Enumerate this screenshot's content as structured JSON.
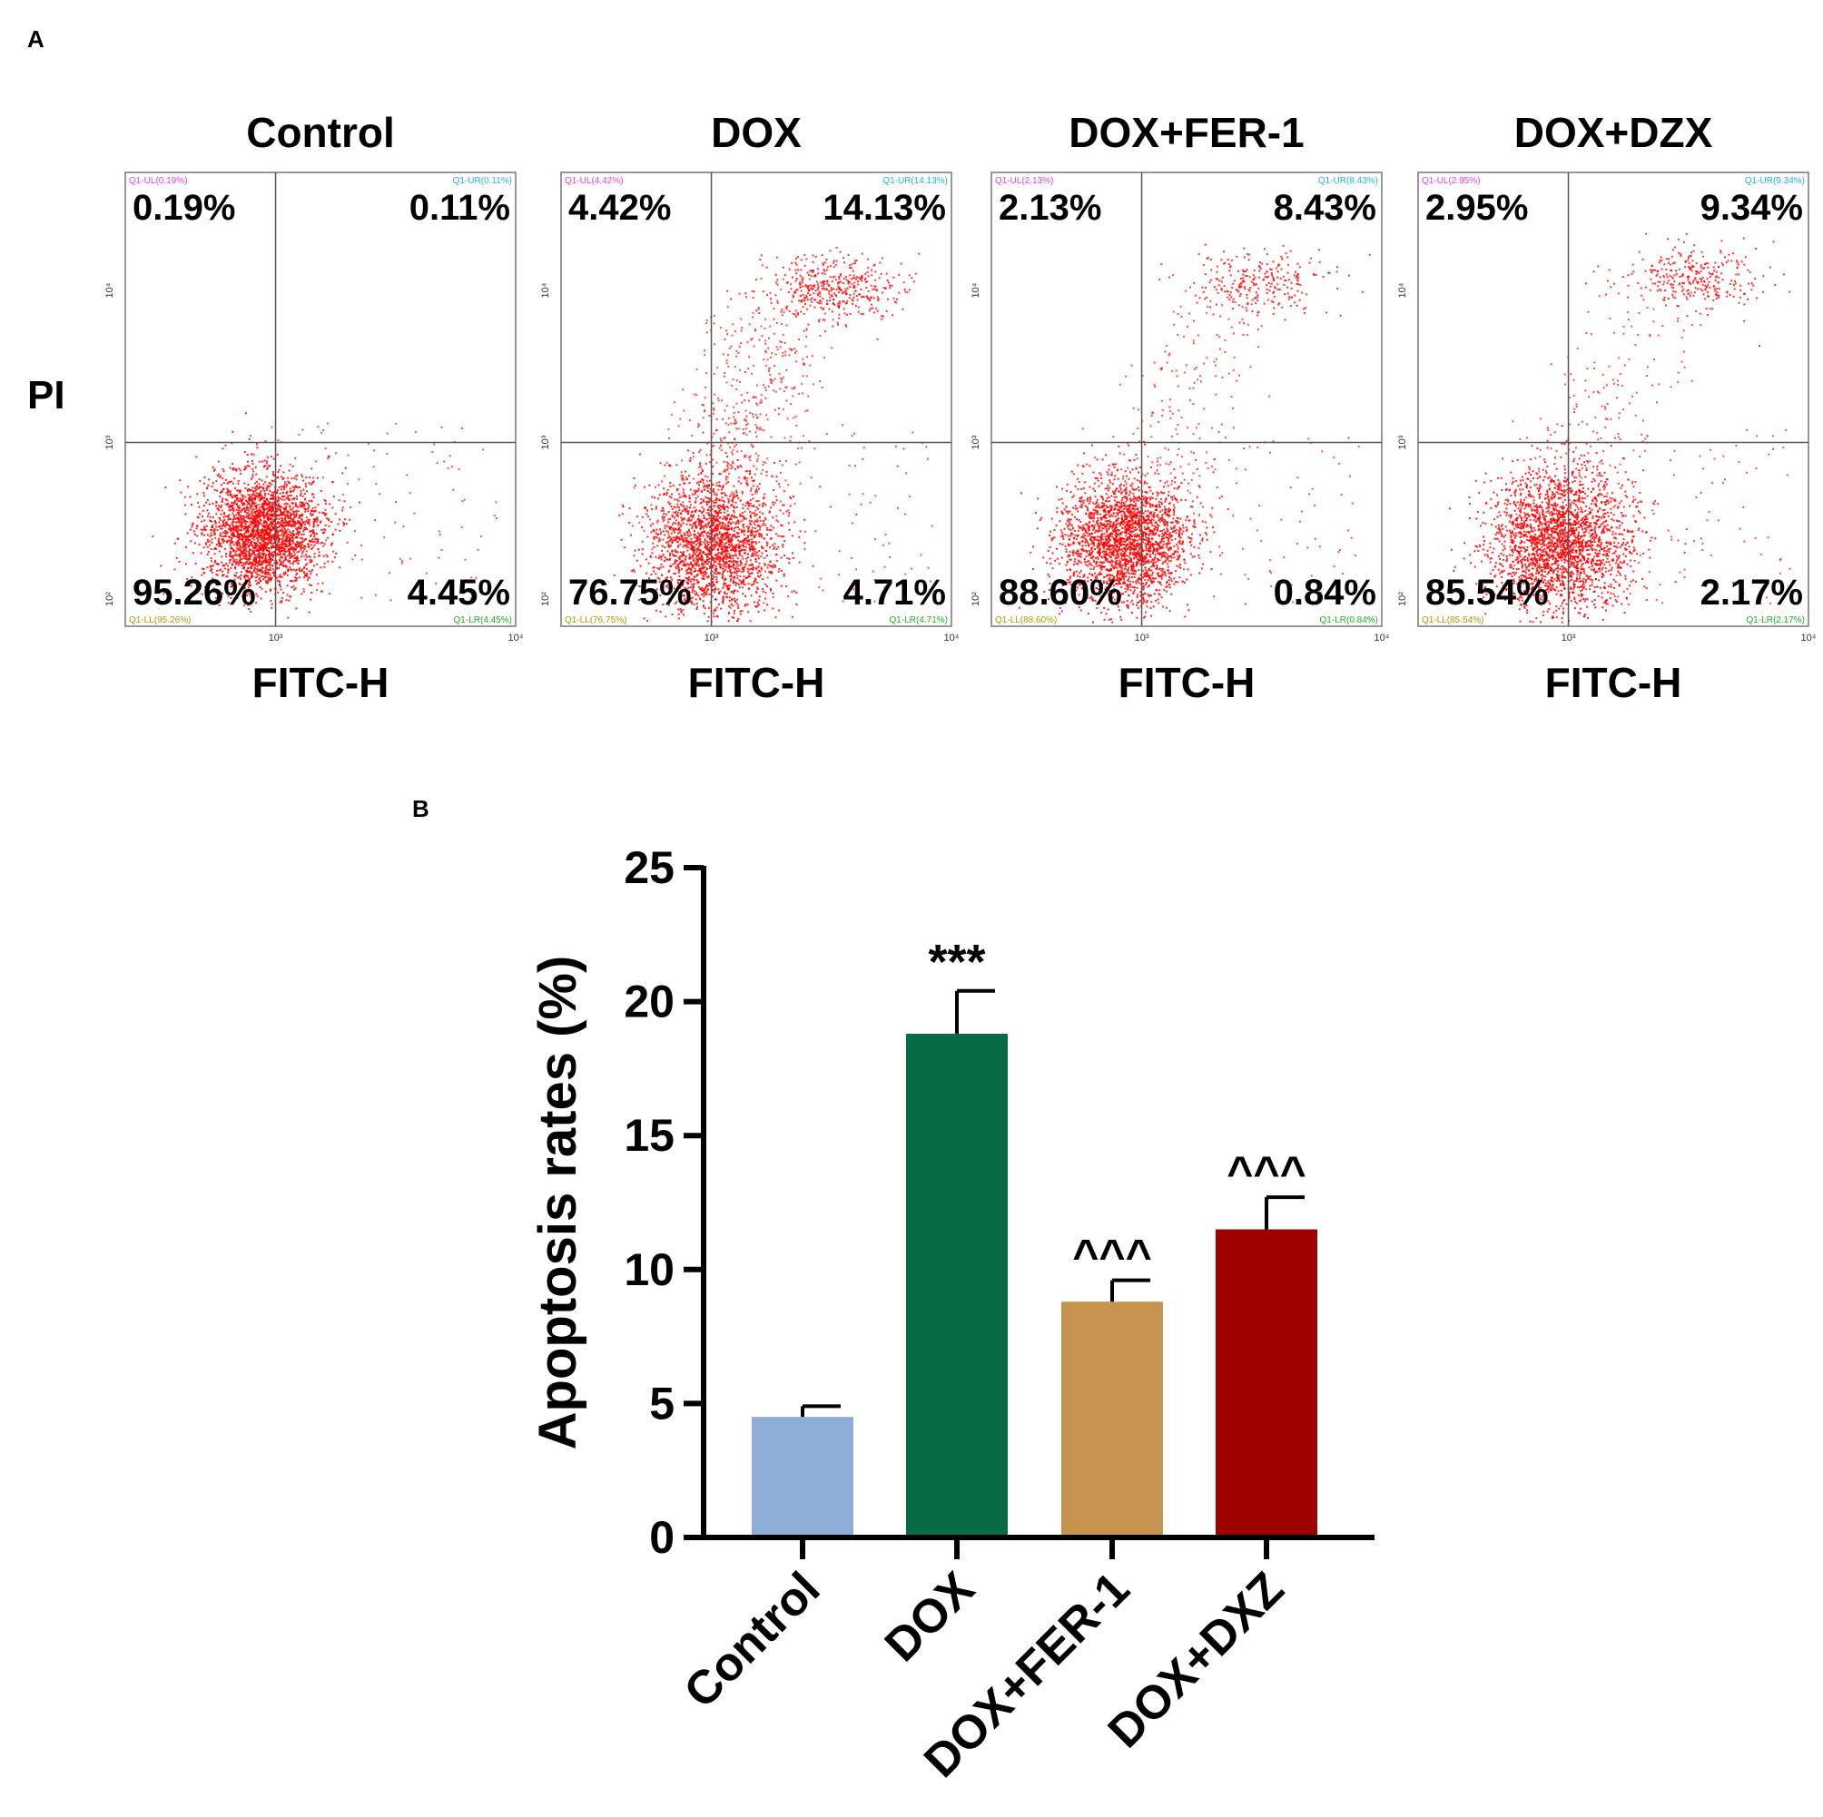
{
  "panel_a": {
    "label": "A",
    "y_axis_label": "PI",
    "plots": [
      {
        "title": "Control",
        "xlabel": "FITC-H",
        "quadrants": {
          "UL": "0.19%",
          "UR": "0.11%",
          "LL": "95.26%",
          "LR": "4.45%"
        },
        "small_labels": {
          "UL": "Q1-UL(0.19%)",
          "UR": "Q1-UR(0.11%)",
          "LL": "Q1-LL(95.26%)",
          "LR": "Q1-LR(4.45%)"
        }
      },
      {
        "title": "DOX",
        "xlabel": "FITC-H",
        "quadrants": {
          "UL": "4.42%",
          "UR": "14.13%",
          "LL": "76.75%",
          "LR": "4.71%"
        },
        "small_labels": {
          "UL": "Q1-UL(4.42%)",
          "UR": "Q1-UR(14.13%)",
          "LL": "Q1-LL(76.75%)",
          "LR": "Q1-LR(4.71%)"
        }
      },
      {
        "title": "DOX+FER-1",
        "xlabel": "FITC-H",
        "quadrants": {
          "UL": "2.13%",
          "UR": "8.43%",
          "LL": "88.60%",
          "LR": "0.84%"
        },
        "small_labels": {
          "UL": "Q1-UL(2.13%)",
          "UR": "Q1-UR(8.43%)",
          "LL": "Q1-LL(88.60%)",
          "LR": "Q1-LR(0.84%)"
        }
      },
      {
        "title": "DOX+DZX",
        "xlabel": "FITC-H",
        "quadrants": {
          "UL": "2.95%",
          "UR": "9.34%",
          "LL": "85.54%",
          "LR": "2.17%"
        },
        "small_labels": {
          "UL": "Q1-UL(2.95%)",
          "UR": "Q1-UR(9.34%)",
          "LL": "Q1-LL(85.54%)",
          "LR": "Q1-LR(2.17%)"
        }
      }
    ],
    "axis_ticks": {
      "x": [
        "10³",
        "10⁴"
      ],
      "y": [
        "10²",
        "10³",
        "10⁴"
      ]
    },
    "dot_color": "#ff0000",
    "colors": {
      "UL": "#e040e0",
      "UR": "#20b0e0",
      "LL": "#a0a000",
      "LR": "#20b020"
    }
  },
  "panel_b": {
    "label": "B"
  },
  "chart_data": [
    {
      "type": "scatter",
      "title": "",
      "xlabel": "FITC-H",
      "ylabel": "PI",
      "xscale": "log",
      "yscale": "log",
      "panels": [
        "Control",
        "DOX",
        "DOX+FER-1",
        "DOX+DZX"
      ],
      "quadrant_percentages": {
        "Control": {
          "UL": 0.19,
          "UR": 0.11,
          "LL": 95.26,
          "LR": 4.45
        },
        "DOX": {
          "UL": 4.42,
          "UR": 14.13,
          "LL": 76.75,
          "LR": 4.71
        },
        "DOX+FER-1": {
          "UL": 2.13,
          "UR": 8.43,
          "LL": 88.6,
          "LR": 0.84
        },
        "DOX+DZX": {
          "UL": 2.95,
          "UR": 9.34,
          "LL": 85.54,
          "LR": 2.17
        }
      }
    },
    {
      "type": "bar",
      "title": "",
      "xlabel": "",
      "ylabel": "Apoptosis rates (%)",
      "ylim": [
        0,
        25
      ],
      "yticks": [
        0,
        5,
        10,
        15,
        20,
        25
      ],
      "grid": false,
      "categories": [
        "Control",
        "DOX",
        "DOX+FER-1",
        "DOX+DXZ"
      ],
      "values": [
        4.5,
        18.8,
        8.8,
        11.5
      ],
      "errors": [
        0.4,
        1.6,
        0.8,
        1.2
      ],
      "significance": [
        "",
        "***",
        "^^^",
        "^^^"
      ],
      "colors": [
        "#8eadd6",
        "#066b44",
        "#c6944f",
        "#9e0000"
      ]
    }
  ]
}
